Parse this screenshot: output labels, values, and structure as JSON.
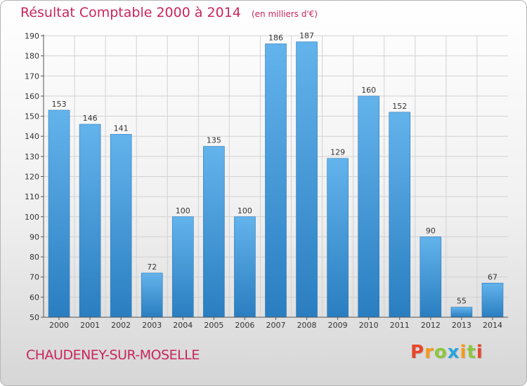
{
  "header": {
    "title": "Résultat Comptable 2000 à 2014",
    "unit": "(en milliers d'€)"
  },
  "footer": {
    "commune": "CHAUDENEY-SUR-MOSELLE",
    "logo_letters": [
      "P",
      "r",
      "o",
      "x",
      "i",
      "t",
      "i"
    ],
    "logo_colors": [
      "#e8462a",
      "#f39a1b",
      "#8dc63f",
      "#2aa3df",
      "#f39a1b",
      "#8dc63f",
      "#e8462a"
    ]
  },
  "colors": {
    "bar_light": "#63b3ec",
    "bar_dark": "#2a7ec0",
    "grid": "#d2d2d2",
    "title": "#c9255c"
  },
  "chart_data": {
    "type": "bar",
    "title": "Résultat Comptable 2000 à 2014",
    "xlabel": "",
    "ylabel": "",
    "categories": [
      "2000",
      "2001",
      "2002",
      "2003",
      "2004",
      "2005",
      "2006",
      "2007",
      "2008",
      "2009",
      "2010",
      "2011",
      "2012",
      "2013",
      "2014"
    ],
    "values": [
      153,
      146,
      141,
      72,
      100,
      135,
      100,
      186,
      187,
      129,
      160,
      152,
      90,
      55,
      67
    ],
    "ylim": [
      50,
      190
    ],
    "yticks": [
      50,
      60,
      70,
      80,
      90,
      100,
      110,
      120,
      130,
      140,
      150,
      160,
      170,
      180,
      190
    ],
    "grid": true,
    "data_labels": true
  }
}
